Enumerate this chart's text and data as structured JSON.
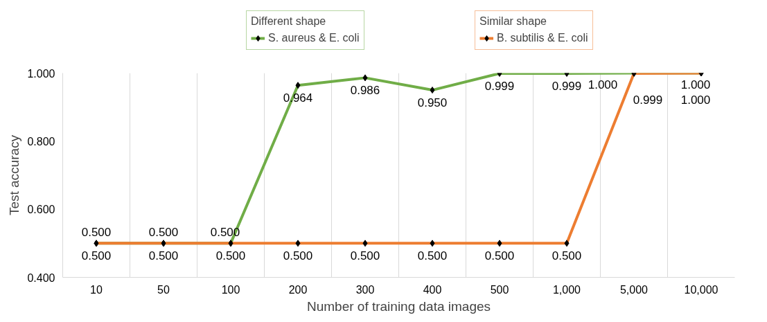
{
  "chart_data": {
    "type": "line",
    "xlabel": "Number of training data images",
    "ylabel": "Test accuracy",
    "categories": [
      "10",
      "50",
      "100",
      "200",
      "300",
      "400",
      "500",
      "1,000",
      "5,000",
      "10,000"
    ],
    "legend_title": [
      "Different shape",
      "Similar shape"
    ],
    "series": [
      {
        "name": "S. aureus & E. coli",
        "color": "#70ad47",
        "values": [
          0.5,
          0.5,
          0.5,
          0.964,
          0.986,
          0.95,
          0.999,
          0.999,
          1.0,
          1.0
        ],
        "value_labels": [
          "0.500",
          "0.500",
          "0.500",
          "0.964",
          "0.986",
          "0.950",
          "0.999",
          "0.999",
          "1.000",
          "1.000"
        ]
      },
      {
        "name": "B. subtilis & E. coli",
        "color": "#ed7d31",
        "values": [
          0.5,
          0.5,
          0.5,
          0.5,
          0.5,
          0.5,
          0.5,
          0.5,
          0.999,
          1.0
        ],
        "value_labels": [
          "0.500",
          "0.500",
          "0.500",
          "0.500",
          "0.500",
          "0.500",
          "0.500",
          "0.500",
          "0.999",
          "1.000"
        ]
      }
    ],
    "ylim": [
      0.4,
      1.0
    ],
    "yticks": [
      {
        "value": 0.4,
        "label": "0.400"
      },
      {
        "value": 0.6,
        "label": "0.600"
      },
      {
        "value": 0.8,
        "label": "0.800"
      },
      {
        "value": 1.0,
        "label": "1.000"
      }
    ],
    "marker": "diamond",
    "grid": "x",
    "legend": "top"
  }
}
